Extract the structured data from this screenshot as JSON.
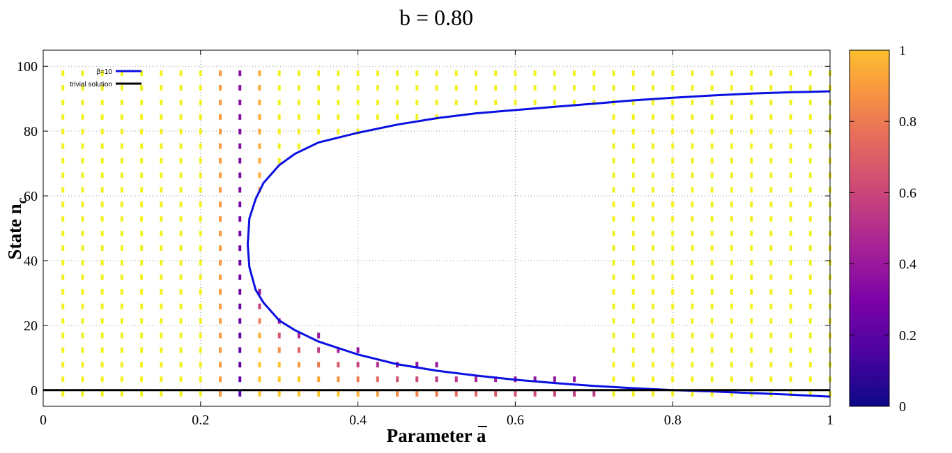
{
  "chart_data": {
    "type": "line",
    "title": "b = 0.80",
    "xlabel": "Parameter a",
    "xlabel_overline": "a",
    "ylabel_main": "State n",
    "ylabel_sub": "c",
    "xlim": [
      0,
      1
    ],
    "ylim": [
      -5,
      105
    ],
    "x_ticks": [
      0,
      0.2,
      0.4,
      0.6,
      0.8,
      1
    ],
    "x_tick_labels": [
      "0",
      "0.2",
      "0.4",
      "0.6",
      "0.8",
      "1"
    ],
    "y_ticks": [
      0,
      20,
      40,
      60,
      80,
      100
    ],
    "y_tick_labels": [
      "0",
      "20",
      "40",
      "60",
      "80",
      "100"
    ],
    "grid": true,
    "legend_position": "top-left",
    "series": [
      {
        "name": "β=10",
        "color": "#0a10e0",
        "x": [
          1.0,
          0.95,
          0.9,
          0.85,
          0.8,
          0.75,
          0.7,
          0.65,
          0.6,
          0.55,
          0.5,
          0.45,
          0.4,
          0.35,
          0.32,
          0.3,
          0.28,
          0.27,
          0.262,
          0.26,
          0.262,
          0.27,
          0.28,
          0.3,
          0.32,
          0.35,
          0.4,
          0.45,
          0.5,
          0.55,
          0.6,
          0.65,
          0.7,
          0.75,
          0.8,
          0.85,
          0.9,
          0.95,
          1.0
        ],
        "y": [
          -2,
          -1.4,
          -0.9,
          -0.4,
          0,
          0.6,
          1.3,
          2.2,
          3.2,
          4.5,
          6,
          8,
          11,
          15,
          18.5,
          21.5,
          27,
          31,
          38,
          45,
          53,
          59,
          64,
          69.5,
          73,
          76.5,
          79.5,
          82,
          84,
          85.5,
          86.5,
          87.5,
          88.5,
          89.5,
          90.3,
          91,
          91.6,
          92,
          92.3
        ]
      },
      {
        "name": "trivial solution",
        "color": "#000000",
        "x": [
          0,
          1
        ],
        "y": [
          0,
          0
        ]
      }
    ],
    "vector_field": {
      "x_values": [
        0.025,
        0.05,
        0.075,
        0.1,
        0.125,
        0.15,
        0.175,
        0.2,
        0.225,
        0.25,
        0.275,
        0.3,
        0.325,
        0.35,
        0.375,
        0.4,
        0.425,
        0.45,
        0.475,
        0.5,
        0.525,
        0.55,
        0.575,
        0.6,
        0.625,
        0.65,
        0.675,
        0.7,
        0.725,
        0.75,
        0.775,
        0.8,
        0.825,
        0.85,
        0.875,
        0.9,
        0.925,
        0.95,
        0.975,
        1.0
      ],
      "y_range": [
        -2,
        100
      ]
    },
    "colorbar": {
      "range": [
        0,
        1
      ],
      "ticks": [
        0,
        0.2,
        0.4,
        0.6,
        0.8,
        1
      ],
      "tick_labels": [
        "0",
        "0.2",
        "0.4",
        "0.6",
        "0.8",
        "1"
      ],
      "colors": [
        "#0d0887",
        "#5c01a6",
        "#9c179e",
        "#cc4778",
        "#ed7953",
        "#fb9f3a",
        "#fdca26",
        "#f0f921"
      ]
    }
  }
}
